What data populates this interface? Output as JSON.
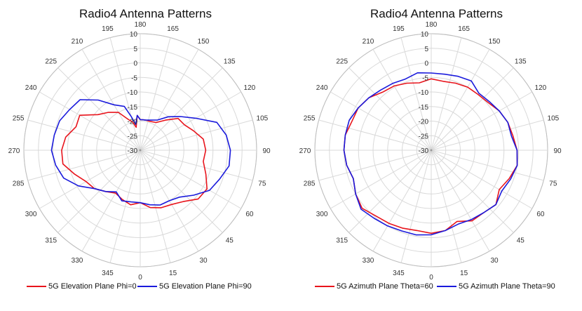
{
  "chart_data": [
    {
      "type": "polar-line",
      "title": "Radio4 Antenna Patterns",
      "angular_ticks": [
        0,
        15,
        30,
        45,
        60,
        75,
        90,
        105,
        120,
        135,
        150,
        165,
        180,
        195,
        210,
        225,
        240,
        255,
        270,
        285,
        300,
        315,
        330,
        345
      ],
      "angle_zero": "bottom",
      "angle_direction": "counter-clockwise",
      "radial_ticks": [
        -30,
        -25,
        -20,
        -15,
        -10,
        -5,
        0,
        5,
        10
      ],
      "rlim": [
        -30,
        10
      ],
      "grid": true,
      "legend_position": "bottom",
      "series": [
        {
          "name": "5G Elevation Plane Phi=0",
          "color": "#e8141c",
          "theta": [
            0,
            10,
            20,
            30,
            40,
            50,
            60,
            70,
            80,
            90,
            100,
            110,
            120,
            130,
            140,
            150,
            160,
            170,
            175,
            180,
            185,
            190,
            195,
            200,
            210,
            220,
            230,
            240,
            250,
            260,
            270,
            280,
            290,
            300,
            310,
            320,
            330,
            340,
            350,
            360
          ],
          "r": [
            -12,
            -10,
            -9,
            -8.5,
            -7,
            -4,
            -3.5,
            -6,
            -8,
            -7.5,
            -8,
            -10.5,
            -12.5,
            -13,
            -16.5,
            -19,
            -19.5,
            -19.5,
            -19.5,
            -19.5,
            -18,
            -22,
            -20,
            -19,
            -15,
            -13,
            -11,
            -6,
            -6.5,
            -4,
            -3,
            -3,
            -6,
            -8.5,
            -9.5,
            -11.5,
            -13,
            -12,
            -11,
            -12
          ]
        },
        {
          "name": "5G Elevation Plane Phi=90",
          "color": "#1a1adc",
          "theta": [
            0,
            10,
            20,
            30,
            40,
            50,
            60,
            70,
            80,
            90,
            100,
            110,
            120,
            130,
            140,
            150,
            160,
            170,
            175,
            180,
            185,
            190,
            195,
            200,
            210,
            220,
            230,
            240,
            250,
            260,
            270,
            280,
            290,
            300,
            310,
            320,
            330,
            340,
            350,
            360
          ],
          "r": [
            -12,
            -11,
            -10,
            -10,
            -9,
            -6,
            -2.5,
            -1,
            1,
            1,
            0,
            -2,
            -8,
            -12,
            -15,
            -18,
            -19,
            -19.5,
            -19.5,
            -19.5,
            -18,
            -21,
            -18,
            -14,
            -12,
            -7.5,
            -3,
            -2,
            -0.5,
            0,
            0.5,
            -0.5,
            -2,
            -5.5,
            -9.5,
            -11.5,
            -13.5,
            -11.5,
            -12,
            -12
          ]
        }
      ]
    },
    {
      "type": "polar-line",
      "title": "Radio4 Antenna Patterns",
      "angular_ticks": [
        0,
        15,
        30,
        45,
        60,
        75,
        90,
        105,
        120,
        135,
        150,
        165,
        180,
        195,
        210,
        225,
        240,
        255,
        270,
        285,
        300,
        315,
        330,
        345
      ],
      "angle_zero": "bottom",
      "angle_direction": "counter-clockwise",
      "radial_ticks": [
        -30,
        -25,
        -20,
        -15,
        -10,
        -5,
        0,
        5,
        10
      ],
      "rlim": [
        -30,
        10
      ],
      "grid": true,
      "legend_position": "bottom",
      "series": [
        {
          "name": "5G Azimuth Plane Theta=60",
          "color": "#e8141c",
          "theta": [
            0,
            10,
            20,
            30,
            40,
            50,
            60,
            70,
            80,
            90,
            100,
            110,
            120,
            130,
            140,
            150,
            160,
            170,
            180,
            190,
            200,
            210,
            220,
            230,
            240,
            250,
            260,
            270,
            280,
            290,
            300,
            310,
            320,
            330,
            340,
            350,
            360
          ],
          "r": [
            -1.5,
            -2,
            -4,
            -2,
            -2,
            -1,
            -3,
            -1.5,
            0,
            -0.5,
            -1.5,
            -2,
            -3,
            -4.5,
            -5,
            -5,
            -5.5,
            -6,
            -5.5,
            -6.5,
            -5.5,
            -4.5,
            -4,
            -2,
            -1,
            -1,
            0,
            0,
            -0.5,
            -1.5,
            0,
            1,
            -0.5,
            -1,
            -1.5,
            -2,
            -1.5
          ]
        },
        {
          "name": "5G Azimuth Plane Theta=90",
          "color": "#1a1adc",
          "theta": [
            0,
            10,
            20,
            30,
            40,
            50,
            60,
            70,
            80,
            90,
            100,
            110,
            120,
            130,
            140,
            150,
            160,
            170,
            180,
            190,
            200,
            210,
            220,
            230,
            240,
            250,
            260,
            270,
            280,
            290,
            300,
            310,
            320,
            330,
            340,
            350,
            360
          ],
          "r": [
            -1,
            -2,
            -3,
            -2.5,
            -2,
            -1,
            -2,
            -1,
            0,
            -0.5,
            -2,
            -2,
            -3,
            -4,
            -4.5,
            -2.5,
            -3,
            -3.5,
            -3.5,
            -3,
            -4,
            -3.5,
            -3,
            -2,
            -1,
            0,
            0,
            0,
            -0.5,
            -1.5,
            0,
            1.5,
            0.5,
            0,
            -0.5,
            -0.5,
            -1
          ]
        }
      ]
    }
  ]
}
